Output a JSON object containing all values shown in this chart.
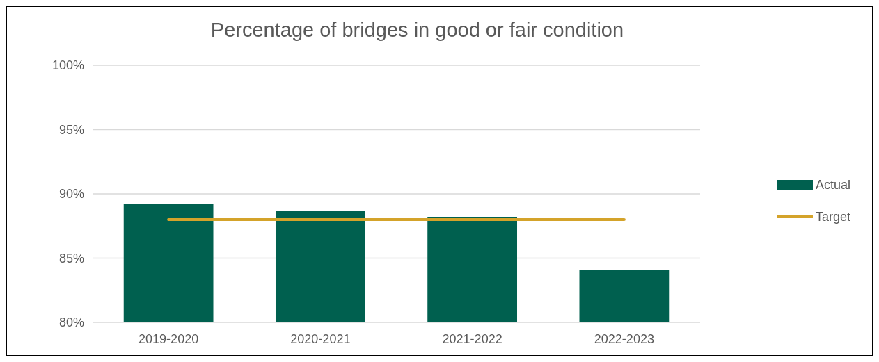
{
  "chart_data": {
    "type": "bar",
    "title": "Percentage of bridges in good or fair condition",
    "categories": [
      "2019-2020",
      "2020-2021",
      "2021-2022",
      "2022-2023"
    ],
    "series": [
      {
        "name": "Actual",
        "color": "#00604f",
        "values": [
          89.2,
          88.7,
          88.2,
          84.1
        ]
      },
      {
        "name": "Target",
        "type": "line",
        "color": "#d4a32a",
        "values": [
          88,
          88,
          88,
          88
        ]
      }
    ],
    "ylim": [
      80,
      100
    ],
    "yticks": [
      {
        "value": 80,
        "label": "80%"
      },
      {
        "value": 85,
        "label": "85%"
      },
      {
        "value": 90,
        "label": "90%"
      },
      {
        "value": 95,
        "label": "95%"
      },
      {
        "value": 100,
        "label": "100%"
      }
    ],
    "grid": "y",
    "legend": "right"
  }
}
